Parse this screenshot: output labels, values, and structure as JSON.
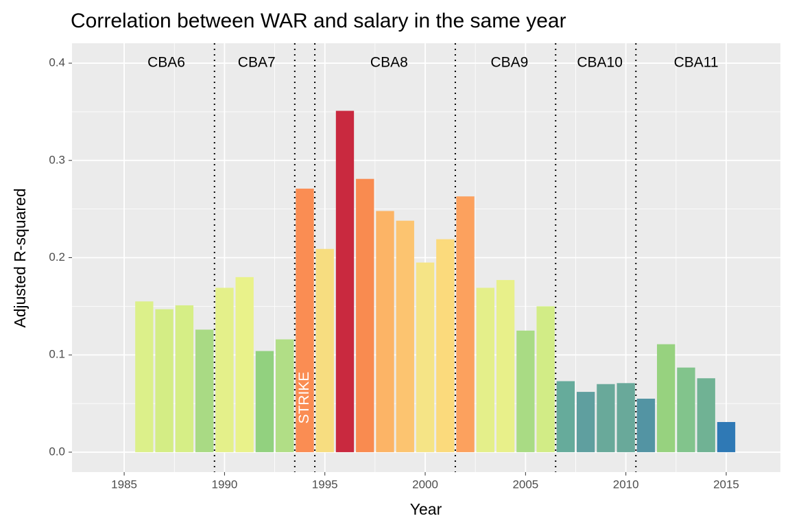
{
  "chart_data": {
    "type": "bar",
    "title": "Correlation between WAR and salary in the same year",
    "x_label": "Year",
    "y_label": "Adjusted R-squared",
    "x": [
      1986,
      1987,
      1988,
      1989,
      1990,
      1991,
      1992,
      1993,
      1994,
      1995,
      1996,
      1997,
      1998,
      1999,
      2000,
      2001,
      2002,
      2003,
      2004,
      2005,
      2006,
      2007,
      2008,
      2009,
      2010,
      2011,
      2012,
      2013,
      2014,
      2015
    ],
    "values": [
      0.155,
      0.147,
      0.151,
      0.126,
      0.169,
      0.18,
      0.104,
      0.116,
      0.271,
      0.209,
      0.351,
      0.281,
      0.248,
      0.238,
      0.195,
      0.219,
      0.263,
      0.169,
      0.177,
      0.125,
      0.15,
      0.073,
      0.062,
      0.07,
      0.071,
      0.055,
      0.111,
      0.087,
      0.076,
      0.031
    ],
    "colors": [
      "#dcf08a",
      "#d4ed85",
      "#d6ee86",
      "#a9da84",
      "#e4f08a",
      "#e9f28a",
      "#92d17f",
      "#b1de86",
      "#fa8d53",
      "#f7dd80",
      "#c9293f",
      "#f98b50",
      "#fcb466",
      "#fcc470",
      "#f5e486",
      "#fbda7c",
      "#fca15e",
      "#e4ef8a",
      "#e8f08a",
      "#a9db84",
      "#d2ec86",
      "#66ab9b",
      "#5f9f9f",
      "#69a99a",
      "#69a99a",
      "#5394a3",
      "#97d27f",
      "#82c48c",
      "#70b294",
      "#2f79b5"
    ],
    "xlim": [
      1982.4,
      2017.7
    ],
    "ylim": [
      -0.0205,
      0.4205
    ],
    "xticks": [
      1985,
      1990,
      1995,
      2000,
      2005,
      2010,
      2015
    ],
    "yticks": [
      {
        "value": 0,
        "label": "0.0"
      },
      0.1,
      0.2,
      0.3,
      0.4
    ],
    "grid": true,
    "vlines": [
      1989.5,
      1993.5,
      1994.5,
      2001.5,
      2006.5,
      2010.5
    ],
    "annotations": [
      {
        "text": "CBA6",
        "x": 1987.1,
        "y": 0.4
      },
      {
        "text": "CBA7",
        "x": 1991.6,
        "y": 0.4
      },
      {
        "text": "CBA8",
        "x": 1998.2,
        "y": 0.4
      },
      {
        "text": "CBA9",
        "x": 2004.2,
        "y": 0.4
      },
      {
        "text": "CBA10",
        "x": 2008.7,
        "y": 0.4
      },
      {
        "text": "CBA11",
        "x": 2013.5,
        "y": 0.4
      },
      {
        "text": "STRIKE",
        "x": 1994,
        "y": 0.056,
        "rotate": true,
        "color": "#ffffff"
      }
    ]
  }
}
